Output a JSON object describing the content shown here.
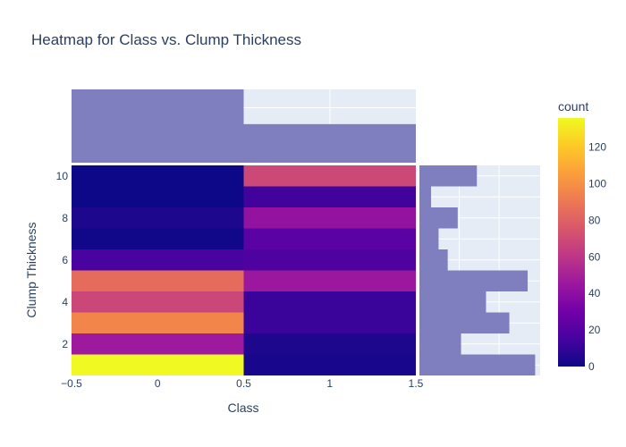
{
  "chart_data": {
    "type": "heatmap",
    "title": "Heatmap for Class vs. Clump Thickness",
    "xlabel": "Class",
    "ylabel": "Clump Thickness",
    "x_categories": [
      0,
      1
    ],
    "x_range": [
      -0.5,
      1.5
    ],
    "x_ticks": [
      "−0.5",
      "0",
      "0.5",
      "1",
      "1.5"
    ],
    "y_categories": [
      1,
      2,
      3,
      4,
      5,
      6,
      7,
      8,
      9,
      10
    ],
    "y_ticks": [
      "2",
      "4",
      "6",
      "8",
      "10"
    ],
    "z": [
      [
        136,
        3
      ],
      [
        46,
        4
      ],
      [
        96,
        12
      ],
      [
        68,
        12
      ],
      [
        85,
        45
      ],
      [
        16,
        18
      ],
      [
        1,
        22
      ],
      [
        4,
        42
      ],
      [
        0,
        14
      ],
      [
        0,
        69
      ]
    ],
    "x_marginal_counts": [
      458,
      241
    ],
    "y_marginal_counts": [
      139,
      50,
      108,
      80,
      130,
      34,
      23,
      46,
      14,
      69
    ],
    "colorbar": {
      "title": "count",
      "range": [
        0,
        136
      ],
      "ticks": [
        "0",
        "20",
        "40",
        "60",
        "80",
        "100",
        "120"
      ]
    },
    "colors": {
      "marginal_bar": "#7f7fbf",
      "plot_bg": "#e5ecf6",
      "text": "#2a3f5f"
    }
  }
}
